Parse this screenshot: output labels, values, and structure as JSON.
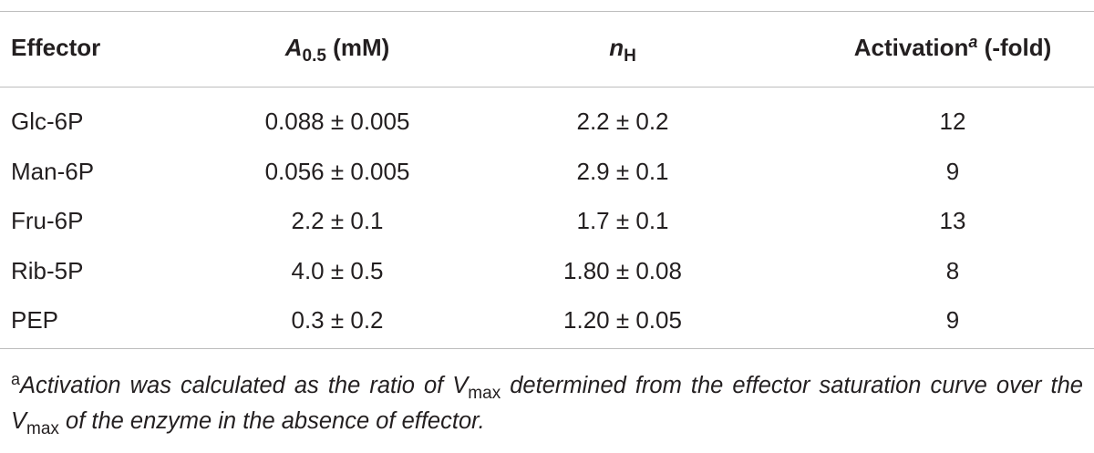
{
  "table": {
    "header": [
      {
        "text": "Effector"
      },
      {
        "symbol": "A",
        "subscript": "0.5",
        "unit": "(mM)"
      },
      {
        "symbol": "n",
        "subscript": "H"
      },
      {
        "text": "Activation",
        "superscript": "a",
        "unit": "(-fold)"
      }
    ],
    "rows": [
      [
        "Glc-6P",
        "0.088 ± 0.005",
        "2.2 ± 0.2",
        "12"
      ],
      [
        "Man-6P",
        "0.056 ± 0.005",
        "2.9 ± 0.1",
        "9"
      ],
      [
        "Fru-6P",
        "2.2 ± 0.1",
        "1.7 ± 0.1",
        "13"
      ],
      [
        "Rib-5P",
        "4.0 ± 0.5",
        "1.80 ± 0.08",
        "8"
      ],
      [
        "PEP",
        "0.3 ± 0.2",
        "1.20 ± 0.05",
        "9"
      ]
    ]
  },
  "footnote": {
    "marker": "a",
    "parts": [
      "Activation was calculated as the ratio of ",
      "V",
      "max",
      " determined from the effector saturation curve over the ",
      "V",
      "max",
      " of the enzyme in the absence of effector."
    ]
  }
}
